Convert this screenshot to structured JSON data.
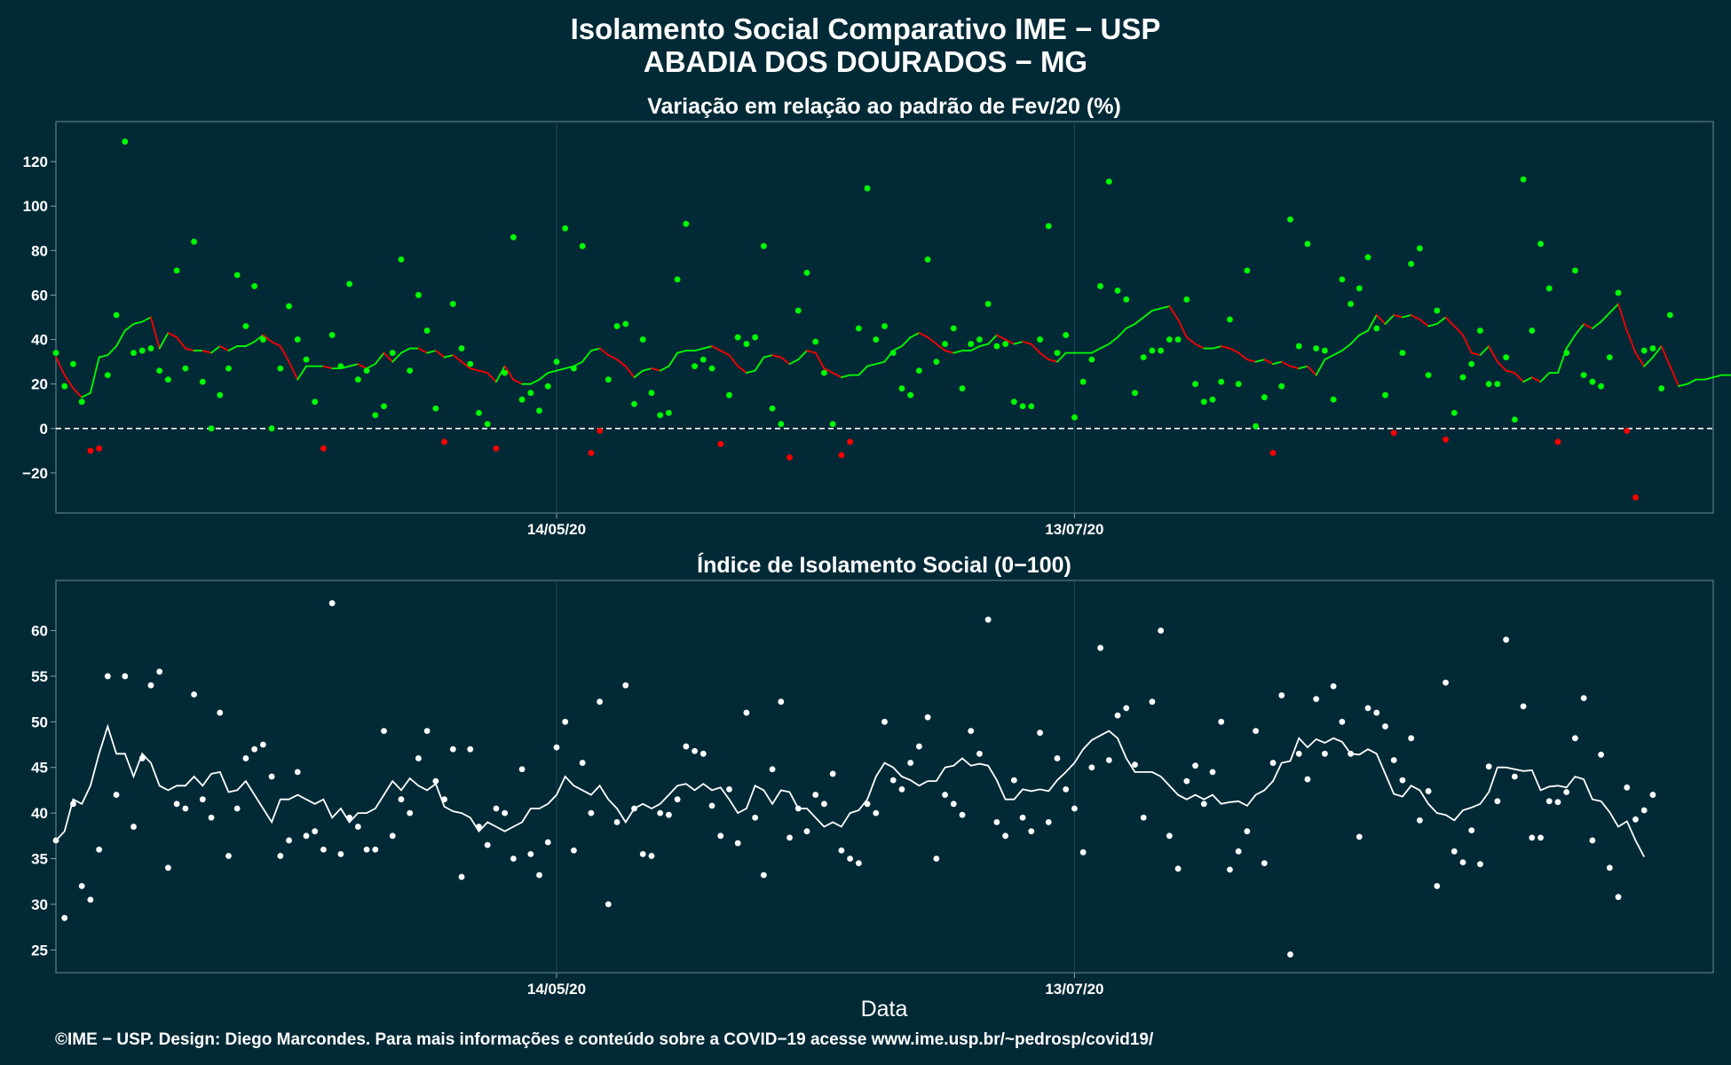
{
  "header": {
    "title": "Isolamento Social Comparativo IME − USP",
    "subtitle": "ABADIA DOS DOURADOS − MG"
  },
  "footer": {
    "credit": "©IME − USP. Design: Diego Marcondes. Para mais informações e conteúdo sobre a COVID−19 acesse www.ime.usp.br/~pedrosp/covid19/"
  },
  "colors": {
    "background": "#022a36",
    "positive": "#00ff00",
    "negative": "#ff0000",
    "index": "#ffffff"
  },
  "chart_data": [
    {
      "type": "scatter",
      "title": "Variação em relação ao padrão de Fev/20 (%)",
      "xlabel": "",
      "ylabel": "",
      "x_range": [
        "2020-03-17",
        "2020-09-25"
      ],
      "x_ticks": [
        {
          "date": "2020-05-14",
          "label": "14/05/20"
        },
        {
          "date": "2020-07-13",
          "label": "13/07/20"
        }
      ],
      "ylim": [
        -38,
        138
      ],
      "y_ticks": [
        120,
        100,
        80,
        60,
        40,
        20,
        0,
        -20
      ],
      "reference_line": 0,
      "grid": true,
      "series": [
        {
          "values": [
            34,
            19,
            29,
            12,
            -10,
            -9,
            24,
            51,
            129,
            34,
            35,
            36,
            26,
            22,
            71,
            27,
            84,
            21,
            0,
            15,
            27,
            69,
            46,
            64,
            40,
            0,
            27,
            55,
            40,
            31,
            12,
            -9,
            42,
            28,
            65,
            22,
            26,
            6,
            10,
            34,
            76,
            26,
            60,
            44,
            9,
            -6,
            56,
            36,
            29,
            7,
            2,
            -9,
            25,
            86,
            13,
            16,
            8,
            19,
            30,
            90,
            27,
            82,
            -11,
            -1,
            22,
            46,
            47,
            11,
            40,
            16,
            6,
            7,
            67,
            92,
            28,
            31,
            27,
            -7,
            15,
            41,
            38,
            41,
            82,
            9,
            2,
            -13,
            53,
            70,
            39,
            25,
            2,
            -12,
            -6,
            45,
            108,
            40,
            46,
            34,
            18,
            15,
            26,
            76,
            30,
            38,
            45,
            18,
            38,
            40,
            56,
            37,
            38,
            12,
            10,
            10,
            40,
            91,
            34,
            42,
            5,
            21,
            31,
            64,
            111,
            62,
            58,
            16,
            32,
            35,
            35,
            40,
            40,
            58,
            20,
            12,
            13,
            21,
            49,
            20,
            71,
            1,
            14,
            -11,
            19,
            94,
            37,
            83,
            36,
            35,
            13,
            67,
            56,
            63,
            77,
            45,
            15,
            -2,
            34,
            74,
            81,
            24,
            53,
            -5,
            7,
            23,
            29,
            44,
            20,
            20,
            32,
            4,
            112,
            44,
            83,
            63,
            -6,
            34,
            71,
            24,
            21,
            19,
            32,
            61,
            -1,
            -31,
            35,
            36,
            18,
            51
          ]
        },
        {
          "values": [
            32,
            24,
            18,
            14,
            16,
            32,
            33,
            37,
            44,
            47,
            48,
            50,
            36,
            43,
            41,
            36,
            35,
            35,
            34,
            37,
            35,
            37,
            37,
            39,
            42,
            39,
            37,
            30,
            22,
            28,
            28,
            28,
            27,
            27,
            28,
            29,
            27,
            29,
            34,
            30,
            34,
            36,
            36,
            34,
            35,
            32,
            33,
            30,
            27,
            26,
            25,
            21,
            28,
            22,
            20,
            20,
            22,
            25,
            26,
            27,
            28,
            30,
            35,
            36,
            33,
            31,
            28,
            23,
            26,
            27,
            26,
            28,
            34,
            35,
            35,
            36,
            37,
            35,
            33,
            28,
            25,
            26,
            32,
            33,
            32,
            29,
            31,
            35,
            34,
            27,
            25,
            23,
            24,
            24,
            28,
            29,
            30,
            35,
            37,
            41,
            43,
            41,
            38,
            35,
            34,
            35,
            35,
            37,
            38,
            42,
            40,
            38,
            39,
            38,
            34,
            31,
            30,
            34,
            34,
            34,
            34,
            36,
            38,
            41,
            45,
            47,
            50,
            53,
            54,
            55,
            49,
            41,
            38,
            36,
            36,
            37,
            36,
            34,
            31,
            30,
            31,
            29,
            30,
            28,
            27,
            28,
            24,
            31,
            33,
            35,
            38,
            42,
            44,
            51,
            47,
            51,
            50,
            51,
            49,
            46,
            47,
            50,
            46,
            42,
            34,
            33,
            37,
            30,
            26,
            25,
            21,
            23,
            21,
            25,
            25,
            36,
            42,
            47,
            45,
            48,
            52,
            56,
            44,
            34,
            28,
            32,
            37,
            28,
            19,
            20,
            22,
            22,
            23,
            24,
            24
          ]
        }
      ]
    },
    {
      "type": "scatter",
      "title": "Índice de Isolamento Social (0−100)",
      "xlabel": "Data",
      "ylabel": "",
      "x_range": [
        "2020-03-17",
        "2020-09-25"
      ],
      "x_ticks": [
        {
          "date": "2020-05-14",
          "label": "14/05/20"
        },
        {
          "date": "2020-07-13",
          "label": "13/07/20"
        }
      ],
      "ylim": [
        22.5,
        65.5
      ],
      "y_ticks": [
        60,
        55,
        50,
        45,
        40,
        35,
        30,
        25
      ],
      "grid": true,
      "series": [
        {
          "values": [
            37,
            28.5,
            41,
            32,
            30.5,
            36,
            55,
            42,
            55,
            38.5,
            46,
            54,
            55.5,
            34,
            41,
            40.5,
            53,
            41.5,
            39.5,
            51,
            35.3,
            40.5,
            46,
            47,
            47.5,
            44,
            35.3,
            37,
            44.5,
            37.5,
            38,
            36,
            63,
            35.5,
            39.5,
            38.5,
            36,
            36,
            49,
            37.5,
            41.5,
            40,
            46,
            49,
            43.5,
            41.5,
            47,
            33,
            47,
            38.5,
            36.5,
            40.5,
            40,
            35,
            44.8,
            35.5,
            33.2,
            36.8,
            47.2,
            50,
            35.9,
            45.5,
            40,
            52.2,
            30,
            39,
            54,
            40.5,
            35.5,
            35.3,
            40,
            39.8,
            41.5,
            47.3,
            46.8,
            46.5,
            40.8,
            37.5,
            42.6,
            36.7,
            51,
            39.5,
            33.2,
            44.8,
            52.2,
            37.3,
            40.5,
            38,
            42,
            41,
            44.3,
            35.9,
            35,
            34.5,
            41,
            40,
            50,
            43.6,
            42.6,
            45.5,
            47.3,
            50.5,
            35,
            42,
            41,
            39.8,
            49,
            46.5,
            61.2,
            39,
            37.5,
            43.6,
            39.5,
            38,
            48.8,
            39,
            46,
            42.6,
            40.5,
            35.7,
            45,
            58.1,
            45.8,
            50.7,
            51.5,
            45.3,
            39.5,
            52.2,
            60,
            37.5,
            33.9,
            43.5,
            45.2,
            41,
            44.5,
            50,
            33.8,
            35.8,
            38,
            49,
            34.5,
            45.5,
            52.9,
            24.5,
            46.5,
            43.7,
            52.5,
            46.5,
            53.9,
            50,
            46.5,
            37.4,
            51.5,
            51,
            49.5,
            45.8,
            43.6,
            48.2,
            39.2,
            42.4,
            32,
            54.3,
            35.8,
            34.6,
            38.1,
            34.4,
            45.1,
            41.3,
            59,
            44,
            51.7,
            37.3,
            37.3,
            41.3,
            41.2,
            42.3,
            48.2,
            52.6,
            37,
            46.4,
            34,
            30.8,
            42.8,
            39.3,
            40.3,
            42
          ]
        },
        {
          "values": [
            37,
            38,
            41.5,
            41,
            43,
            46.5,
            49.5,
            46.5,
            46.5,
            44,
            46.5,
            45.5,
            43,
            42.5,
            43,
            43,
            44,
            43,
            44.3,
            44.5,
            42.3,
            42.5,
            43.5,
            42,
            40.5,
            39,
            41.5,
            41.5,
            42,
            41.5,
            41,
            41.5,
            39.5,
            40.5,
            39,
            40,
            40,
            40.5,
            42,
            43.5,
            42.5,
            43.8,
            43,
            42.5,
            43.2,
            40.7,
            40.2,
            40,
            39.5,
            38,
            39,
            38.5,
            38,
            38.5,
            39,
            40.5,
            40.5,
            41,
            42,
            44,
            43,
            42.5,
            42,
            43,
            41.5,
            40.5,
            39,
            40.5,
            41,
            40.5,
            41,
            42,
            43,
            43.2,
            42.5,
            43.2,
            42.5,
            42.8,
            41.5,
            40,
            40.5,
            43,
            42.5,
            41,
            42.5,
            42.3,
            40.5,
            40.5,
            39.5,
            38.5,
            39,
            38.5,
            40,
            40.3,
            41.5,
            44,
            45.5,
            45,
            44,
            43.6,
            43,
            43.5,
            43.5,
            45,
            45.2,
            46,
            45.2,
            45.4,
            45.2,
            43.6,
            41.5,
            41.5,
            42.6,
            42.4,
            42.6,
            42.4,
            43.6,
            44.5,
            45.5,
            47,
            48,
            48.5,
            49,
            48.2,
            46,
            44.5,
            44.5,
            44.5,
            44,
            43,
            42,
            41.5,
            42,
            41.5,
            42,
            41,
            41.2,
            41.3,
            40.8,
            42,
            42.5,
            43.5,
            45.5,
            45.7,
            48.2,
            47.2,
            48.1,
            47.7,
            48.2,
            47.8,
            46.5,
            46.4,
            47,
            46.5,
            44.3,
            42.1,
            41.8,
            43,
            42.5,
            41,
            40,
            39.8,
            39.2,
            40.3,
            40.6,
            41,
            42.3,
            45,
            45,
            44.8,
            44.6,
            44.7,
            42.5,
            42.9,
            43,
            42.8,
            44,
            43.7,
            41.5,
            41.3,
            40.1,
            38.5,
            39.1,
            37,
            35.2
          ]
        }
      ]
    }
  ]
}
